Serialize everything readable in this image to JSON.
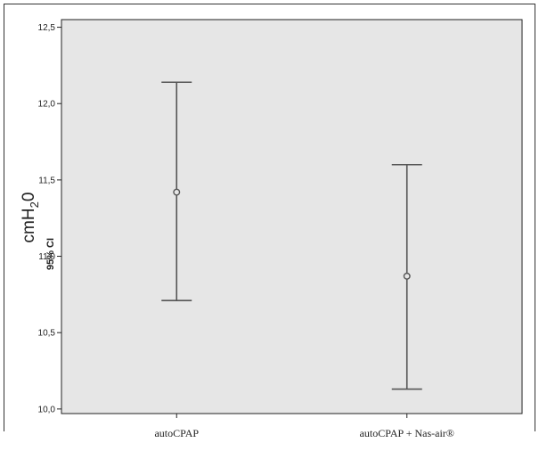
{
  "chart_data": {
    "type": "errorbar",
    "categories": [
      "autoCPAP",
      "autoCPAP + Nas-air®"
    ],
    "series": [
      {
        "means": [
          11.42,
          10.87
        ],
        "lower": [
          10.71,
          10.13
        ],
        "upper": [
          12.14,
          11.6
        ]
      }
    ],
    "ylabel": "cmH",
    "ylabel_subscript": "2",
    "ylabel_suffix": "0",
    "ylabel_ci": "95% CI",
    "ylim": [
      9.97,
      12.55
    ],
    "yticks": [
      10.0,
      10.5,
      11.0,
      11.5,
      12.0,
      12.5
    ],
    "ytick_labels": [
      "10,0",
      "10,5",
      "11,0",
      "11,5",
      "12,0",
      "12,5"
    ],
    "grid": false,
    "plot_background": "#e6e6e6",
    "line_color": "#555555"
  }
}
